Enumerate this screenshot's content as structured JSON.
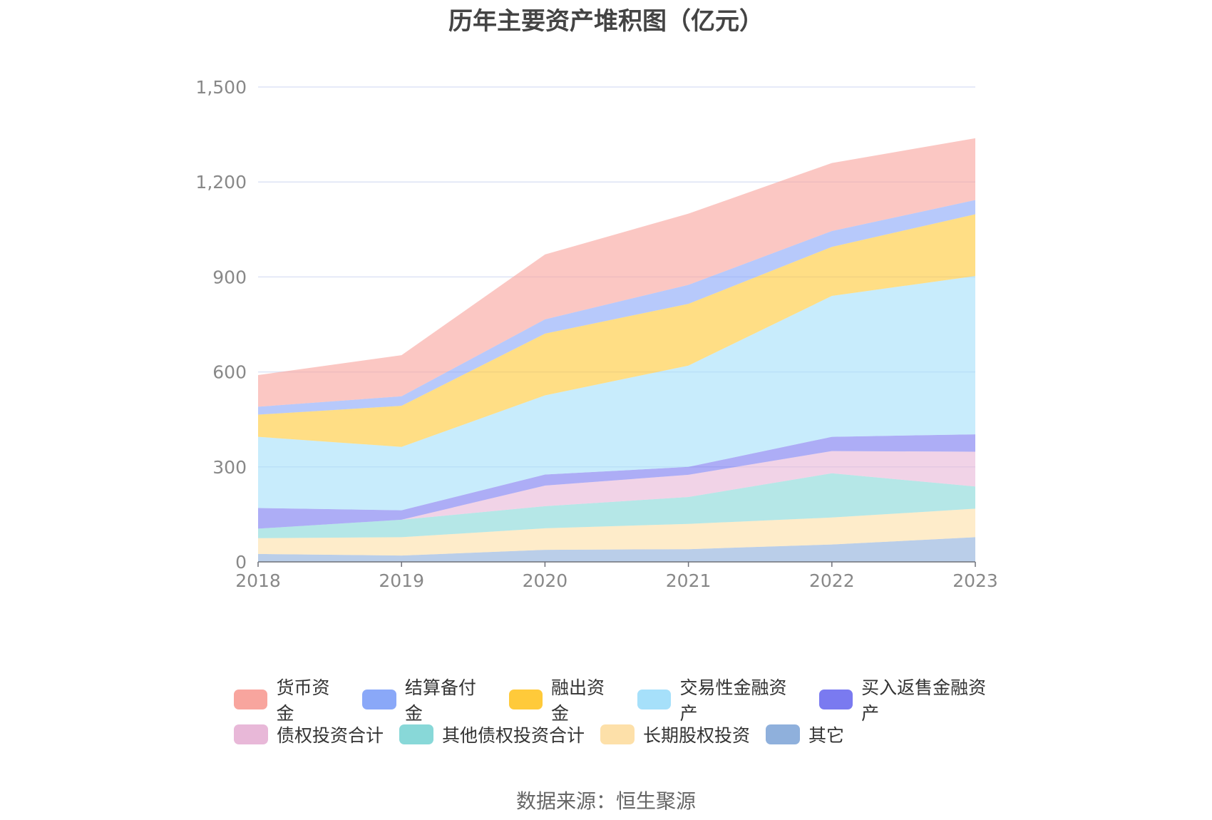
{
  "chart_data": {
    "type": "area",
    "stacked": true,
    "title": "历年主要资产堆积图（亿元）",
    "xlabel": "",
    "ylabel": "",
    "categories": [
      "2018",
      "2019",
      "2020",
      "2021",
      "2022",
      "2023"
    ],
    "ylim": [
      0,
      1500
    ],
    "yticks": [
      0,
      300,
      600,
      900,
      1200,
      1500
    ],
    "ytick_labels": [
      "0",
      "300",
      "600",
      "900",
      "1,200",
      "1,500"
    ],
    "grid": true,
    "legend_position": "bottom",
    "series": [
      {
        "name": "其它",
        "color": "#8fb0dc",
        "values": [
          25,
          20,
          38,
          40,
          55,
          78
        ]
      },
      {
        "name": "长期股权投资",
        "color": "#fde0a9",
        "values": [
          50,
          58,
          68,
          80,
          85,
          90
        ]
      },
      {
        "name": "其他债权投资合计",
        "color": "#88d8d8",
        "values": [
          30,
          55,
          70,
          85,
          140,
          70
        ]
      },
      {
        "name": "债权投资合计",
        "color": "#e8b8d8",
        "values": [
          0,
          0,
          65,
          70,
          70,
          110
        ]
      },
      {
        "name": "买入返售金融资产",
        "color": "#7a7af0",
        "values": [
          65,
          30,
          35,
          25,
          45,
          55
        ]
      },
      {
        "name": "交易性金融资产",
        "color": "#a6e0fa",
        "values": [
          225,
          200,
          250,
          320,
          445,
          500
        ]
      },
      {
        "name": "融出资金",
        "color": "#ffca3a",
        "values": [
          70,
          130,
          195,
          195,
          155,
          195
        ]
      },
      {
        "name": "结算备付金",
        "color": "#8aa8f8",
        "values": [
          25,
          30,
          45,
          60,
          50,
          45
        ]
      },
      {
        "name": "货币资金",
        "color": "#f8a59e",
        "values": [
          100,
          130,
          205,
          225,
          215,
          195
        ]
      }
    ],
    "legend_order": [
      "货币资金",
      "结算备付金",
      "融出资金",
      "交易性金融资产",
      "买入返售金融资产",
      "债权投资合计",
      "其他债权投资合计",
      "长期股权投资",
      "其它"
    ]
  },
  "source_text": "数据来源：恒生聚源"
}
